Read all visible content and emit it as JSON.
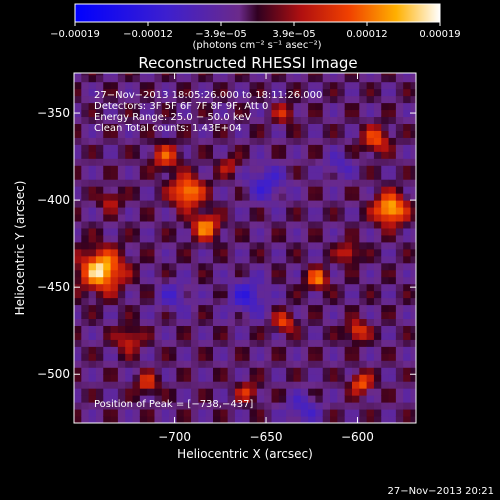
{
  "chart_data": {
    "type": "heatmap",
    "title": "Reconstructed RHESSI Image",
    "xlabel": "Heliocentric X (arcsec)",
    "ylabel": "Heliocentric Y (arcsec)",
    "xlim": [
      -755,
      -568
    ],
    "ylim": [
      -528,
      -327
    ],
    "x_ticks": [
      {
        "value": -700,
        "label": "−700"
      },
      {
        "value": -650,
        "label": "−650"
      },
      {
        "value": -600,
        "label": "−600"
      }
    ],
    "y_ticks": [
      {
        "value": -350,
        "label": "−350"
      },
      {
        "value": -400,
        "label": "−400"
      },
      {
        "value": -450,
        "label": "−450"
      },
      {
        "value": -500,
        "label": "−500"
      }
    ],
    "colorbar": {
      "range": [
        -0.00019,
        0.00019
      ],
      "tick_labels": [
        "−0.00019",
        "−0.00012",
        "−3.9e−05",
        "3.9e−05",
        "0.00012",
        "0.00019"
      ],
      "units_label": "(photons cm⁻² s⁻¹ asec⁻²)"
    },
    "annotations": [
      "27−Nov−2013 18:05:26.000 to 18:11:26.000",
      "Detectors: 3F 5F 6F 7F 8F 9F, Att 0",
      "Energy Range: 25.0 − 50.0 keV",
      "Clean     Total counts: 1.43E+04"
    ],
    "peak_label": "Position of Peak = [−738,−437]",
    "peak": [
      -738,
      -437
    ],
    "sources": [
      {
        "x": -740,
        "y": -440,
        "peak": 1.0,
        "sigma": 8
      },
      {
        "x": -693,
        "y": -395,
        "peak": 0.85,
        "sigma": 6
      },
      {
        "x": -683,
        "y": -415,
        "peak": 0.75,
        "sigma": 5
      },
      {
        "x": -705,
        "y": -375,
        "peak": 0.55,
        "sigma": 5
      },
      {
        "x": -582,
        "y": -405,
        "peak": 0.95,
        "sigma": 6
      },
      {
        "x": -590,
        "y": -365,
        "peak": 0.6,
        "sigma": 5
      },
      {
        "x": -622,
        "y": -445,
        "peak": 0.7,
        "sigma": 4
      },
      {
        "x": -640,
        "y": -470,
        "peak": 0.55,
        "sigma": 4
      },
      {
        "x": -600,
        "y": -475,
        "peak": 0.6,
        "sigma": 4
      },
      {
        "x": -598,
        "y": -505,
        "peak": 0.65,
        "sigma": 4
      },
      {
        "x": -660,
        "y": -510,
        "peak": 0.45,
        "sigma": 4
      },
      {
        "x": -725,
        "y": -480,
        "peak": 0.45,
        "sigma": 5
      },
      {
        "x": -640,
        "y": -350,
        "peak": 0.4,
        "sigma": 4
      },
      {
        "x": -715,
        "y": -505,
        "peak": 0.5,
        "sigma": 4
      },
      {
        "x": -605,
        "y": -430,
        "peak": 0.5,
        "sigma": 4
      },
      {
        "x": -670,
        "y": -380,
        "peak": 0.35,
        "sigma": 4
      },
      {
        "x": -735,
        "y": -400,
        "peak": 0.4,
        "sigma": 4
      },
      {
        "x": -660,
        "y": -455,
        "peak": -0.45,
        "sigma": 7
      },
      {
        "x": -650,
        "y": -390,
        "peak": -0.4,
        "sigma": 7
      },
      {
        "x": -700,
        "y": -455,
        "peak": -0.3,
        "sigma": 6
      },
      {
        "x": -630,
        "y": -520,
        "peak": -0.35,
        "sigma": 6
      },
      {
        "x": -610,
        "y": -380,
        "peak": -0.3,
        "sigma": 5
      }
    ]
  },
  "footer": {
    "timestamp": "27−Nov−2013 20:21"
  }
}
